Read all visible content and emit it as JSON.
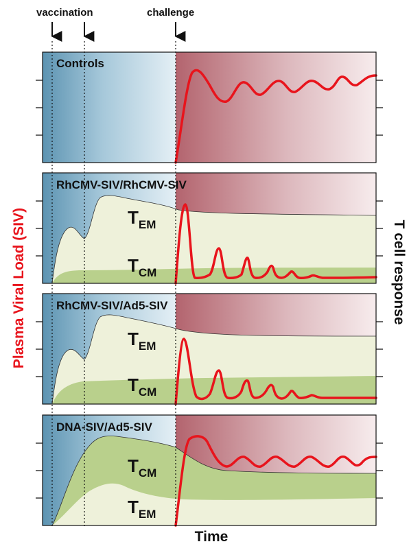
{
  "markers": {
    "vaccination": "vaccination",
    "challenge": "challenge"
  },
  "axes": {
    "left_label": "Plasma Viral Load (SIV)",
    "right_label": "T cell response",
    "bottom_label": "Time"
  },
  "panels": [
    {
      "title": "Controls"
    },
    {
      "title": "RhCMV-SIV/RhCMV-SIV",
      "upper_label": "T",
      "upper_sub": "EM",
      "lower_label": "T",
      "lower_sub": "CM"
    },
    {
      "title": "RhCMV-SIV/Ad5-SIV",
      "upper_label": "T",
      "upper_sub": "EM",
      "lower_label": "T",
      "lower_sub": "CM"
    },
    {
      "title": "DNA-SIV/Ad5-SIV",
      "upper_label": "T",
      "upper_sub": "CM",
      "lower_label": "T",
      "lower_sub": "EM"
    }
  ],
  "colors": {
    "viral_load": "#e8141c",
    "vaccine_phase": "#5f96b4",
    "post_challenge": "#b66a74",
    "tem_fill": "#eef1da",
    "tcm_fill": "#b9d08c"
  }
}
